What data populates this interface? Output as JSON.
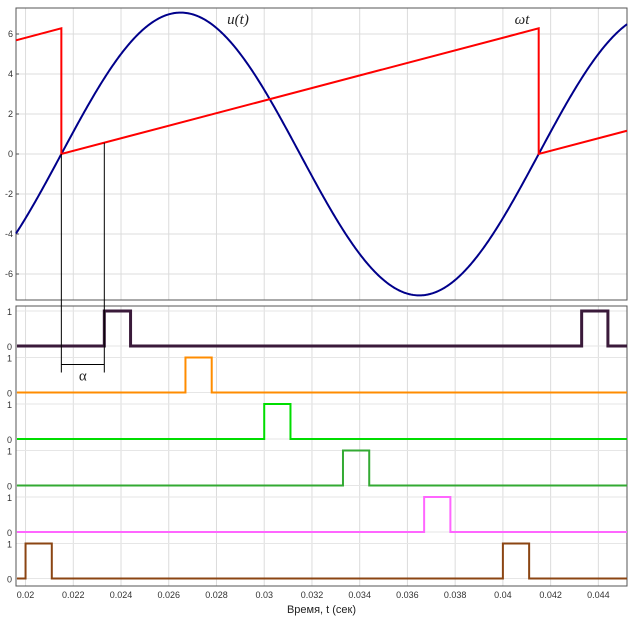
{
  "chart_data": [
    {
      "type": "line",
      "x_unit": "s",
      "xlim": [
        0.0196,
        0.0452
      ],
      "ylim": [
        -7.3,
        7.3
      ],
      "yticks": [
        "-6",
        "-4",
        "-2",
        "0",
        "2",
        "4",
        "6"
      ],
      "grid": true,
      "series": [
        {
          "name": "u(t)",
          "label_prefix": "u",
          "label_arg": "(t)",
          "color": "#00008b",
          "kind": "sine",
          "amplitude": 7.07,
          "period": 0.02,
          "peak_at": 0.0265
        },
        {
          "name": "ωt",
          "label_prefix": "ω",
          "label_arg": "t",
          "color": "#ff0000",
          "kind": "sawtooth",
          "max": 6.283,
          "period": 0.02,
          "reset_at": 0.0215
        }
      ],
      "annotation": {
        "label": "α",
        "x_start": 0.0215,
        "x_end": 0.0233
      }
    },
    {
      "type": "line",
      "xlabel": "Время, t (сек)",
      "x_unit": "s",
      "xlim": [
        0.0196,
        0.0452
      ],
      "xticks": [
        "0.02",
        "0.022",
        "0.024",
        "0.026",
        "0.028",
        "0.03",
        "0.032",
        "0.034",
        "0.036",
        "0.038",
        "0.04",
        "0.042",
        "0.044"
      ],
      "grid": true,
      "gate_ylabels": [
        "0",
        "1"
      ],
      "series": [
        {
          "color": "#3a1a3a",
          "pulses": [
            [
              0.0233,
              0.0244
            ],
            [
              0.0433,
              0.0444
            ]
          ]
        },
        {
          "color": "#ff8c00",
          "pulses": [
            [
              0.0267,
              0.0278
            ]
          ]
        },
        {
          "color": "#00dd00",
          "pulses": [
            [
              0.03,
              0.0311
            ]
          ]
        },
        {
          "color": "#33aa33",
          "pulses": [
            [
              0.0333,
              0.0344
            ]
          ]
        },
        {
          "color": "#ff66ff",
          "pulses": [
            [
              0.0367,
              0.0378
            ]
          ]
        },
        {
          "color": "#8b4513",
          "pulses": [
            [
              0.02,
              0.0211
            ],
            [
              0.04,
              0.0411
            ]
          ]
        }
      ]
    }
  ]
}
